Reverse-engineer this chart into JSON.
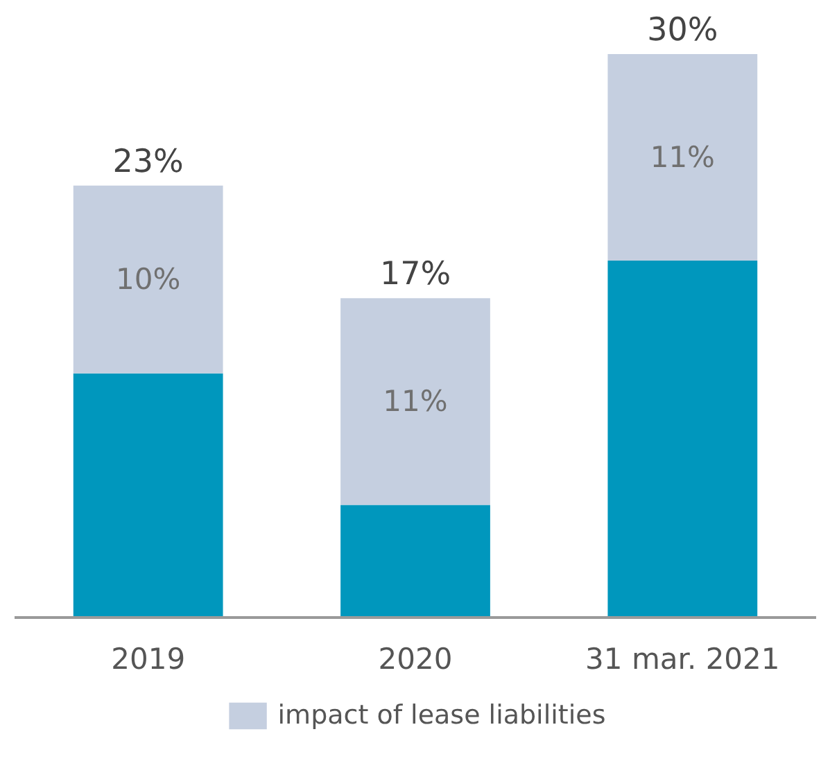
{
  "chart_data": {
    "type": "bar",
    "stacked": true,
    "categories": [
      "2019",
      "2020",
      "31 mar. 2021"
    ],
    "series": [
      {
        "color": "#0097bd",
        "values": [
          13,
          6,
          19
        ]
      },
      {
        "name": "impact of lease liabilities",
        "color": "#c5cfe0",
        "values": [
          10,
          11,
          11
        ],
        "value_labels": [
          "10%",
          "11%",
          "11%"
        ]
      }
    ],
    "totals": [
      "23%",
      "17%",
      "30%"
    ],
    "legend": "bottom",
    "grid": false
  }
}
